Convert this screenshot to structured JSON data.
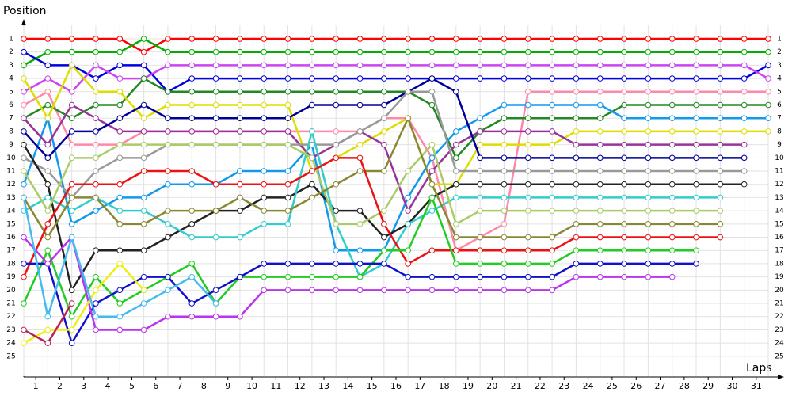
{
  "chart_data": {
    "type": "line",
    "ylabel": "Position",
    "xlabel": "Laps",
    "x": [
      0,
      1,
      2,
      3,
      4,
      5,
      6,
      7,
      8,
      9,
      10,
      11,
      12,
      13,
      14,
      15,
      16,
      17,
      18,
      19,
      20,
      21,
      22,
      23,
      24,
      25,
      26,
      27,
      28,
      29,
      30,
      31
    ],
    "xlim": [
      0,
      31
    ],
    "xticks": [
      1,
      2,
      3,
      4,
      5,
      6,
      7,
      8,
      9,
      10,
      11,
      12,
      13,
      14,
      15,
      16,
      17,
      18,
      19,
      20,
      21,
      22,
      23,
      24,
      25,
      26,
      27,
      28,
      29,
      30,
      31
    ],
    "ylim": [
      0,
      26.5
    ],
    "yticks": [
      1,
      2,
      3,
      4,
      5,
      6,
      7,
      8,
      9,
      10,
      11,
      12,
      13,
      14,
      15,
      16,
      17,
      18,
      19,
      20,
      21,
      22,
      23,
      24,
      25
    ],
    "y_inverted": true,
    "grid": true,
    "series": [
      {
        "color": "#ff0000",
        "values": [
          1,
          1,
          1,
          1,
          1,
          2,
          1,
          1,
          1,
          1,
          1,
          1,
          1,
          1,
          1,
          1,
          1,
          1,
          1,
          1,
          1,
          1,
          1,
          1,
          1,
          1,
          1,
          1,
          1,
          1,
          1,
          1
        ]
      },
      {
        "color": "#00b000",
        "values": [
          3,
          2,
          2,
          2,
          2,
          1,
          2,
          2,
          2,
          2,
          2,
          2,
          2,
          2,
          2,
          2,
          2,
          2,
          2,
          2,
          2,
          2,
          2,
          2,
          2,
          2,
          2,
          2,
          2,
          2,
          2,
          2
        ]
      },
      {
        "color": "#0000e0",
        "values": [
          2,
          3,
          3,
          4,
          3,
          3,
          5,
          4,
          4,
          4,
          4,
          4,
          4,
          4,
          4,
          4,
          4,
          4,
          4,
          4,
          4,
          4,
          4,
          4,
          4,
          4,
          4,
          4,
          4,
          4,
          4,
          3
        ]
      },
      {
        "color": "#cc44ee",
        "values": [
          5,
          4,
          5,
          3,
          4,
          4,
          3,
          3,
          3,
          3,
          3,
          3,
          3,
          3,
          3,
          3,
          3,
          3,
          3,
          3,
          3,
          3,
          3,
          3,
          3,
          3,
          3,
          3,
          3,
          3,
          3,
          4
        ]
      },
      {
        "color": "#ff88aa",
        "values": [
          6,
          5,
          9,
          9,
          9,
          8,
          8,
          8,
          8,
          8,
          8,
          8,
          8,
          8,
          8,
          7,
          7,
          10,
          17,
          16,
          15,
          5,
          5,
          5,
          5,
          5,
          5,
          5,
          5,
          5,
          5,
          5
        ]
      },
      {
        "color": "#228822",
        "values": [
          7,
          6,
          7,
          6,
          6,
          4,
          5,
          5,
          5,
          5,
          5,
          5,
          5,
          5,
          5,
          5,
          5,
          6,
          10,
          8,
          7,
          7,
          7,
          7,
          7,
          6,
          6,
          6,
          6,
          6,
          6,
          6
        ]
      },
      {
        "color": "#1199ee",
        "values": [
          12,
          7,
          15,
          14,
          13,
          13,
          12,
          12,
          12,
          11,
          11,
          11,
          9,
          17,
          17,
          17,
          13,
          10,
          8,
          7,
          6,
          6,
          6,
          6,
          6,
          7,
          7,
          7,
          7,
          7,
          7,
          7
        ]
      },
      {
        "color": "#dddd00",
        "values": [
          4,
          7,
          3,
          5,
          5,
          7,
          6,
          6,
          6,
          6,
          6,
          6,
          11,
          10,
          9,
          8,
          7,
          12,
          12,
          9,
          9,
          9,
          9,
          8,
          8,
          8,
          8,
          8,
          8,
          8,
          8,
          8
        ]
      },
      {
        "color": "#993399",
        "values": [
          7,
          9,
          6,
          7,
          8,
          8,
          8,
          8,
          8,
          8,
          8,
          8,
          10,
          9,
          8,
          9,
          14,
          11,
          9,
          8,
          8,
          8,
          8,
          9,
          9,
          9,
          9,
          9,
          9,
          9,
          9,
          null
        ]
      },
      {
        "color": "#000099",
        "values": [
          8,
          10,
          8,
          8,
          7,
          6,
          7,
          7,
          7,
          7,
          7,
          7,
          6,
          6,
          6,
          6,
          5,
          4,
          5,
          10,
          10,
          10,
          10,
          10,
          10,
          10,
          10,
          10,
          10,
          10,
          10,
          null
        ]
      },
      {
        "color": "#999999",
        "values": [
          10,
          11,
          13,
          11,
          10,
          10,
          9,
          9,
          9,
          9,
          9,
          9,
          9,
          9,
          8,
          7,
          5,
          5,
          11,
          11,
          11,
          11,
          11,
          11,
          11,
          11,
          11,
          11,
          11,
          11,
          11,
          null
        ]
      },
      {
        "color": "#222222",
        "values": [
          9,
          12,
          20,
          17,
          17,
          17,
          16,
          15,
          14,
          14,
          13,
          13,
          12,
          14,
          14,
          16,
          15,
          13,
          12,
          12,
          12,
          12,
          12,
          12,
          12,
          12,
          12,
          12,
          12,
          12,
          12,
          null
        ]
      },
      {
        "color": "#33cccc",
        "values": [
          14,
          13,
          14,
          13,
          14,
          14,
          15,
          16,
          16,
          16,
          15,
          15,
          8,
          15,
          19,
          18,
          15,
          14,
          13,
          13,
          13,
          13,
          13,
          13,
          13,
          13,
          13,
          13,
          13,
          13,
          null,
          null
        ]
      },
      {
        "color": "#aacc66",
        "values": [
          11,
          14,
          10,
          10,
          9,
          9,
          9,
          9,
          9,
          9,
          9,
          9,
          10,
          15,
          15,
          14,
          11,
          9,
          15,
          14,
          14,
          14,
          14,
          14,
          14,
          14,
          14,
          14,
          14,
          14,
          null,
          null
        ]
      },
      {
        "color": "#888833",
        "values": [
          13,
          16,
          13,
          13,
          15,
          15,
          14,
          14,
          14,
          13,
          14,
          14,
          13,
          12,
          11,
          11,
          7,
          12,
          16,
          16,
          16,
          16,
          16,
          15,
          15,
          15,
          15,
          15,
          15,
          15,
          null,
          null
        ]
      },
      {
        "color": "#ee1111",
        "values": [
          19,
          15,
          12,
          12,
          12,
          11,
          11,
          11,
          12,
          12,
          12,
          12,
          11,
          10,
          10,
          15,
          18,
          17,
          17,
          17,
          17,
          17,
          17,
          16,
          16,
          16,
          16,
          16,
          16,
          16,
          null,
          null
        ]
      },
      {
        "color": "#22cc22",
        "values": [
          21,
          17,
          22,
          19,
          21,
          20,
          19,
          18,
          21,
          19,
          19,
          19,
          19,
          19,
          19,
          17,
          17,
          13,
          18,
          18,
          18,
          18,
          18,
          17,
          17,
          17,
          17,
          17,
          17,
          null,
          null,
          null
        ]
      },
      {
        "color": "#1111cc",
        "values": [
          18,
          18,
          24,
          21,
          20,
          19,
          19,
          21,
          20,
          19,
          18,
          18,
          18,
          18,
          18,
          18,
          19,
          19,
          19,
          19,
          19,
          19,
          19,
          18,
          18,
          18,
          18,
          18,
          18,
          null,
          null,
          null
        ]
      },
      {
        "color": "#bb33ee",
        "values": [
          16,
          18,
          16,
          23,
          23,
          23,
          22,
          22,
          22,
          22,
          20,
          20,
          20,
          20,
          20,
          20,
          20,
          20,
          20,
          20,
          20,
          20,
          20,
          19,
          19,
          19,
          19,
          19,
          null,
          null,
          null,
          null
        ]
      },
      {
        "color": "#eeee11",
        "values": [
          24,
          23,
          23,
          20,
          18,
          20,
          null,
          null,
          null,
          null,
          null,
          null,
          null,
          null,
          null,
          null,
          null,
          null,
          null,
          null,
          null,
          null,
          null,
          null,
          null,
          null,
          null,
          null,
          null,
          null,
          null,
          null
        ]
      },
      {
        "color": "#44bbee",
        "values": [
          13,
          22,
          16,
          22,
          22,
          21,
          20,
          19,
          21,
          null,
          null,
          null,
          null,
          null,
          null,
          null,
          null,
          null,
          null,
          null,
          null,
          null,
          null,
          null,
          null,
          null,
          null,
          null,
          null,
          null,
          null,
          null
        ]
      },
      {
        "color": "#bb2255",
        "values": [
          23,
          24,
          21,
          null,
          null,
          null,
          null,
          null,
          null,
          null,
          null,
          null,
          null,
          null,
          null,
          null,
          null,
          null,
          null,
          null,
          null,
          null,
          null,
          null,
          null,
          null,
          null,
          null,
          null,
          null,
          null,
          null
        ]
      }
    ]
  }
}
